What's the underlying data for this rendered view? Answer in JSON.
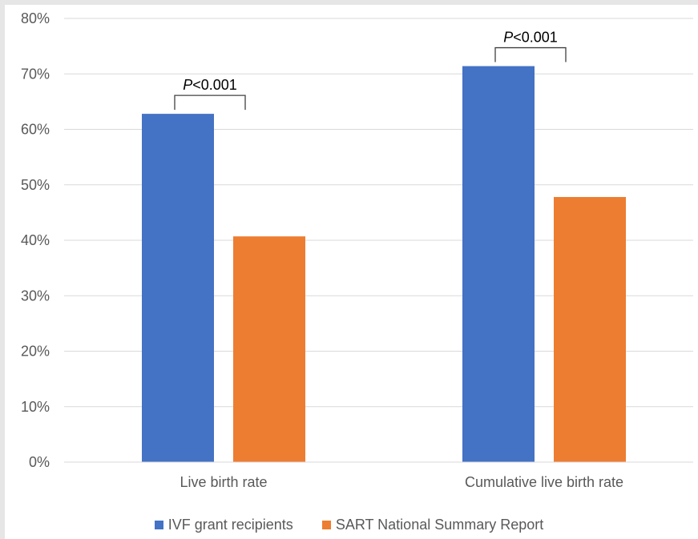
{
  "chart_data": {
    "type": "bar",
    "categories": [
      "Live birth rate",
      "Cumulative live birth rate"
    ],
    "series": [
      {
        "name": "IVF grant recipients",
        "color": "#4472c4",
        "values": [
          62.8,
          71.4
        ]
      },
      {
        "name": "SART National Summary Report",
        "color": "#ed7d31",
        "values": [
          40.7,
          47.8
        ]
      }
    ],
    "ylim": [
      0,
      80
    ],
    "yticks": [
      "0%",
      "10%",
      "20%",
      "30%",
      "40%",
      "50%",
      "60%",
      "70%",
      "80%"
    ],
    "grid": true,
    "legend_position": "bottom",
    "annotations": [
      {
        "italic": "P",
        "text": "<0.001"
      },
      {
        "italic": "P",
        "text": "<0.001"
      }
    ]
  }
}
